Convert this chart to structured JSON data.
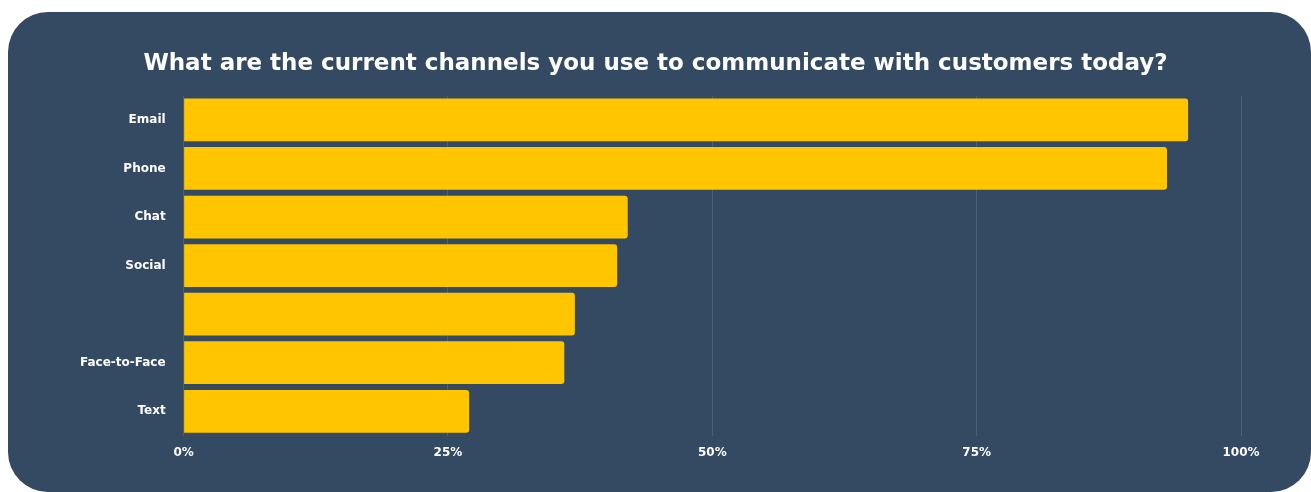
{
  "chart_data": {
    "type": "bar",
    "orientation": "horizontal",
    "title": "What are the current channels you use to communicate with customers today?",
    "categories": [
      "Email",
      "Phone",
      "Chat",
      "Social",
      null,
      "Face-to-Face",
      "Text"
    ],
    "values": [
      95,
      93,
      42,
      41,
      37,
      36,
      27
    ],
    "color": "#ffc600",
    "xlim": [
      0,
      100
    ],
    "xticks": [
      {
        "value": 0,
        "label": "0%"
      },
      {
        "value": 25,
        "label": "25%"
      },
      {
        "value": 50,
        "label": "50%"
      },
      {
        "value": 75,
        "label": "75%"
      },
      {
        "value": 100,
        "label": "100%"
      }
    ],
    "grid": "x"
  }
}
